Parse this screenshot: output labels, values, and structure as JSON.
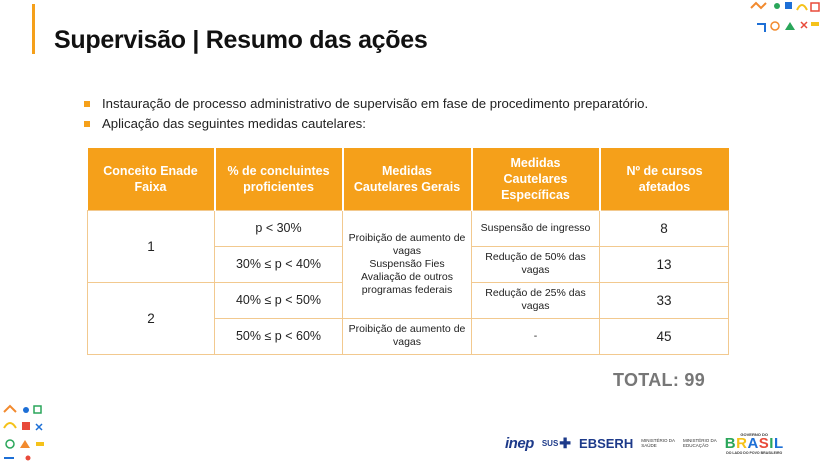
{
  "slide": {
    "title": "Supervisão | Resumo das ações",
    "bullets": [
      "Instauração de processo administrativo de supervisão em fase de procedimento preparatório.",
      "Aplicação das seguintes medidas cautelares:"
    ],
    "accent_color": "#f5a01a"
  },
  "table": {
    "headers": [
      "Conceito Enade Faixa",
      "% de concluintes proficientes",
      "Medidas Cautelares Gerais",
      "Medidas Cautelares Específicas",
      "Nº de cursos afetados"
    ],
    "faixa": [
      "1",
      "2"
    ],
    "proficientes": [
      "p < 30%",
      "30% ≤ p < 40%",
      "40% ≤ p < 50%",
      "50% ≤ p < 60%"
    ],
    "gerais_top": [
      "Proibição de aumento de vagas",
      "Suspensão Fies",
      "Avaliação de outros programas federais"
    ],
    "gerais_bottom": "Proibição de aumento de vagas",
    "especificas": [
      "Suspensão de ingresso",
      "Redução de 50% das vagas",
      "Redução de 25% das vagas",
      "-"
    ],
    "cursos": [
      "8",
      "13",
      "33",
      "45"
    ]
  },
  "total": "TOTAL: 99",
  "footer": {
    "logos": {
      "inep": "inep",
      "sus": "SUS",
      "ebserh": "EBSERH",
      "ministerio_saude": [
        "MINISTÉRIO DA",
        "SAÚDE"
      ],
      "ministerio_educacao": [
        "MINISTÉRIO DA",
        "EDUCAÇÃO"
      ],
      "governo_top": "GOVERNO DO",
      "governo_word": "BRASIL",
      "governo_sub": "DO LADO DO POVO BRASILEIRO"
    }
  }
}
